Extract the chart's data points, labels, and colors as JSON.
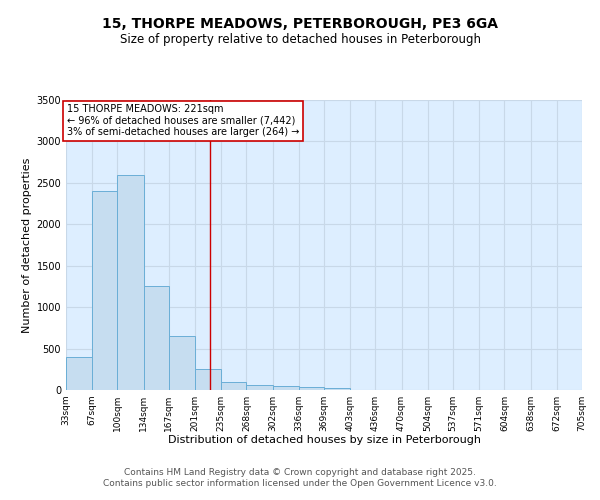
{
  "title_line1": "15, THORPE MEADOWS, PETERBOROUGH, PE3 6GA",
  "title_line2": "Size of property relative to detached houses in Peterborough",
  "xlabel": "Distribution of detached houses by size in Peterborough",
  "ylabel": "Number of detached properties",
  "bar_values": [
    400,
    2400,
    2600,
    1250,
    650,
    250,
    100,
    55,
    50,
    35,
    20,
    5,
    0,
    0,
    0,
    0,
    0,
    0,
    0,
    0
  ],
  "bin_edges": [
    33,
    67,
    100,
    134,
    167,
    201,
    235,
    268,
    302,
    336,
    369,
    403,
    436,
    470,
    504,
    537,
    571,
    604,
    638,
    672,
    705
  ],
  "tick_labels": [
    "33sqm",
    "67sqm",
    "100sqm",
    "134sqm",
    "167sqm",
    "201sqm",
    "235sqm",
    "268sqm",
    "302sqm",
    "336sqm",
    "369sqm",
    "403sqm",
    "436sqm",
    "470sqm",
    "504sqm",
    "537sqm",
    "571sqm",
    "604sqm",
    "638sqm",
    "672sqm",
    "705sqm"
  ],
  "bar_color": "#c6ddf0",
  "bar_edgecolor": "#6aaed6",
  "property_line_x": 221,
  "property_line_color": "#cc0000",
  "annotation_text": "15 THORPE MEADOWS: 221sqm\n← 96% of detached houses are smaller (7,442)\n3% of semi-detached houses are larger (264) →",
  "annotation_box_color": "#ffffff",
  "annotation_box_edgecolor": "#cc0000",
  "ylim": [
    0,
    3500
  ],
  "yticks": [
    0,
    500,
    1000,
    1500,
    2000,
    2500,
    3000,
    3500
  ],
  "grid_color": "#c8d8e8",
  "background_color": "#ddeeff",
  "footer_text": "Contains HM Land Registry data © Crown copyright and database right 2025.\nContains public sector information licensed under the Open Government Licence v3.0.",
  "title_fontsize": 10,
  "subtitle_fontsize": 8.5,
  "axis_label_fontsize": 8,
  "tick_fontsize": 6.5,
  "annotation_fontsize": 7,
  "footer_fontsize": 6.5
}
